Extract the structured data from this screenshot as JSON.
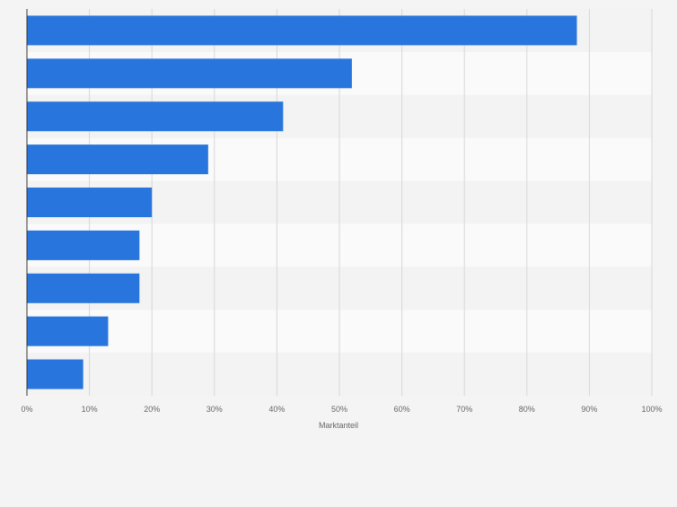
{
  "chart_data": {
    "type": "bar",
    "orientation": "horizontal",
    "categories": [
      "",
      "",
      "",
      "",
      "",
      "",
      "",
      "",
      ""
    ],
    "values": [
      88,
      52,
      41,
      29,
      20,
      18,
      18,
      13,
      9
    ],
    "title": "",
    "xlabel": "Marktanteil",
    "ylabel": "",
    "xlim": [
      0,
      100
    ],
    "x_ticks": [
      "0%",
      "10%",
      "20%",
      "30%",
      "40%",
      "50%",
      "60%",
      "70%",
      "80%",
      "90%",
      "100%"
    ],
    "grid": true,
    "legend": "none",
    "colors": {
      "bar": "#2876dd",
      "band_light": "#fafafa",
      "band_dark": "#f3f3f3",
      "background": "#f4f4f4",
      "grid": "#d7d7d7",
      "axis": "#333333",
      "text": "#666666"
    }
  }
}
